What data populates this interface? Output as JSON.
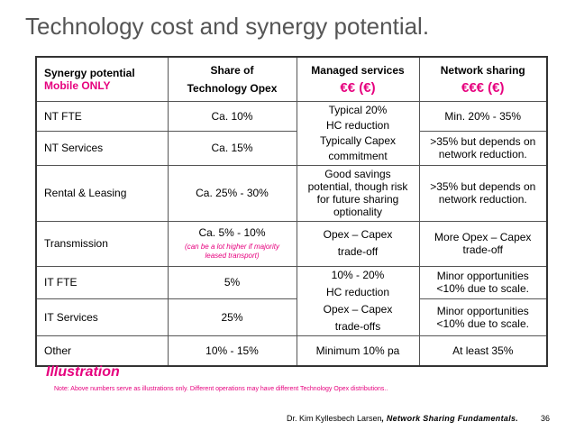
{
  "title": "Technology cost and synergy potential.",
  "header": {
    "col1_line1": "Synergy potential",
    "col1_line2": "Mobile ONLY",
    "col2_line1": "Share of",
    "col2_line2": "Technology Opex",
    "col3_label": "Managed services",
    "col3_euro": "€€ (€)",
    "col4_label": "Network sharing",
    "col4_euro": "€€€ (€)"
  },
  "rows": {
    "nt_fte": {
      "label": "NT FTE",
      "share": "Ca. 10%",
      "network": "Min. 20% - 35%"
    },
    "nt_fte_nt_services_managed": {
      "line1": "Typical 20%",
      "line2": "HC reduction",
      "line3": "Typically Capex",
      "line4": "commitment"
    },
    "nt_services": {
      "label": "NT Services",
      "share": "Ca. 15%",
      "network_line1": ">35% but depends on",
      "network_line2": "network reduction."
    },
    "rental": {
      "label": "Rental & Leasing",
      "share": "Ca. 25% - 30%",
      "managed_line1": "Good savings",
      "managed_line2": "potential, though risk",
      "managed_line3": "for future sharing",
      "managed_line4": "optionality",
      "network_line1": ">35% but depends on",
      "network_line2": "network reduction."
    },
    "transmission": {
      "label": "Transmission",
      "share": "Ca. 5% - 10%",
      "share_note_line1": "(can be a lot higher if majority",
      "share_note_line2": "leased transport)",
      "managed_line1": "Opex – Capex",
      "managed_line2": "trade-off",
      "network_line1": "More Opex – Capex",
      "network_line2": "trade-off"
    },
    "it_fte": {
      "label": "IT FTE",
      "share": "5%",
      "network_line1": "Minor opportunities",
      "network_line2": "<10% due to scale."
    },
    "it_managed": {
      "line1": "10% - 20%",
      "line2": "HC reduction",
      "line3": "Opex – Capex",
      "line4": "trade-offs"
    },
    "it_services": {
      "label": "IT Services",
      "share": "25%",
      "network_line1": "Minor opportunities",
      "network_line2": "<10% due to scale."
    },
    "other": {
      "label": "Other",
      "share": "10% - 15%",
      "managed": "Minimum 10% pa",
      "network": "At least 35%"
    }
  },
  "illustration": "Illustration",
  "note": "Note: Above numbers serve as illustrations only. Different operations may have different Technology Opex distributions..",
  "footer": {
    "author": "Dr. Kim Kyllesbech Larsen",
    "separator": ",",
    "series": "Network Sharing Fundamentals.",
    "page": "36"
  }
}
